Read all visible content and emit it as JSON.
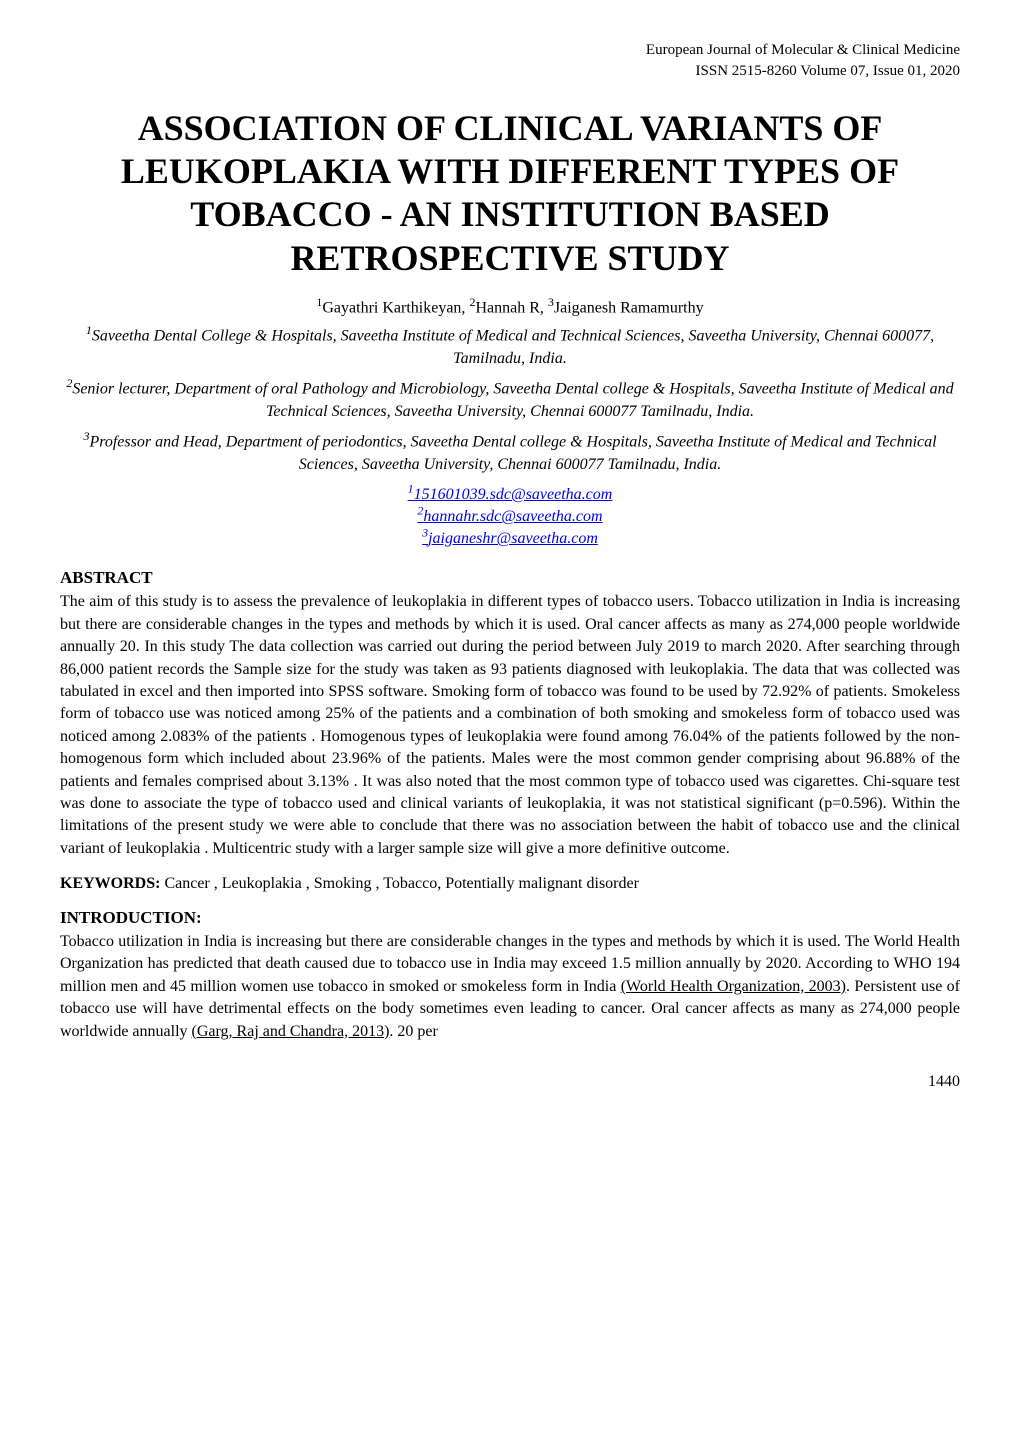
{
  "header": {
    "journal": "European Journal of Molecular & Clinical Medicine",
    "issn_volume": "ISSN 2515-8260        Volume 07, Issue 01, 2020"
  },
  "title": "ASSOCIATION OF CLINICAL VARIANTS OF LEUKOPLAKIA WITH DIFFERENT TYPES OF TOBACCO - AN INSTITUTION BASED RETROSPECTIVE STUDY",
  "authors": {
    "a1_sup": "1",
    "a1_name": "Gayathri Karthikeyan, ",
    "a2_sup": "2",
    "a2_name": "Hannah R, ",
    "a3_sup": "3",
    "a3_name": "Jaiganesh Ramamurthy"
  },
  "affiliations": {
    "aff1_sup": "1",
    "aff1_text": "Saveetha Dental College & Hospitals, Saveetha Institute of Medical and Technical Sciences, Saveetha University, Chennai 600077, Tamilnadu, India.",
    "aff2_sup": "2",
    "aff2_text": "Senior lecturer, Department of oral Pathology and Microbiology, Saveetha Dental college & Hospitals, Saveetha Institute of Medical and Technical Sciences, Saveetha University, Chennai 600077 Tamilnadu, India.",
    "aff3_sup": "3",
    "aff3_text": "Professor and Head, Department of periodontics, Saveetha Dental college & Hospitals, Saveetha Institute of Medical and Technical Sciences, Saveetha University, Chennai 600077 Tamilnadu, India."
  },
  "emails": {
    "e1_sup": "1",
    "e1_text": "151601039.sdc@saveetha.com",
    "e2_sup": "2",
    "e2_text": "hannahr.sdc@saveetha.com",
    "e3_sup": "3",
    "e3_text": "jaiganeshr@saveetha.com"
  },
  "abstract": {
    "heading": "ABSTRACT",
    "text": "The aim of this study is to assess the prevalence of leukoplakia in different types of tobacco users. Tobacco utilization in India is increasing but there are considerable changes in the types and methods by which it is used. Oral cancer affects as many as 274,000 people worldwide annually 20. In this study The data collection was carried out during the period between July 2019 to march 2020. After searching through 86,000 patient records the Sample size for the study was taken as 93 patients diagnosed with leukoplakia. The data that was collected was tabulated in excel and then imported into SPSS software. Smoking form of tobacco was found to be used by 72.92% of patients. Smokeless form of tobacco use was noticed among 25% of the patients and a combination of both smoking and smokeless form of tobacco used was noticed among 2.083% of the patients . Homogenous types of leukoplakia were found among 76.04% of the patients followed by the non-homogenous form which included about 23.96% of the patients. Males were the most common gender comprising about 96.88% of the patients and females comprised about 3.13% . It was also noted that the most common type of tobacco used was cigarettes. Chi-square test was done to associate the type of tobacco used and clinical variants of leukoplakia, it was not statistical significant (p=0.596). Within the limitations of the present study we were able to conclude that there was no association between the habit of tobacco use and the clinical variant of leukoplakia . Multicentric study with a larger sample size will give a more definitive outcome."
  },
  "keywords": {
    "label": "KEYWORDS: ",
    "text": "Cancer , Leukoplakia , Smoking , Tobacco, Potentially malignant disorder"
  },
  "introduction": {
    "heading": "INTRODUCTION:",
    "text_part1": "Tobacco utilization in India is increasing but there are considerable changes in the types and methods by which it is used. The World Health Organization has predicted that death caused due to tobacco use in India may exceed 1.5 million annually by 2020. According to WHO 194 million men and 45 million women use tobacco in smoked or smokeless form in India ",
    "ref1": "(World Health Organization, 2003)",
    "text_part2": ". Persistent use of tobacco use will have detrimental effects on the body sometimes even leading to cancer. Oral cancer affects as many as 274,000 people worldwide annually ",
    "ref2": "(Garg, Raj and Chandra, 2013)",
    "text_part3": ". 20 per"
  },
  "page_number": "1440"
}
